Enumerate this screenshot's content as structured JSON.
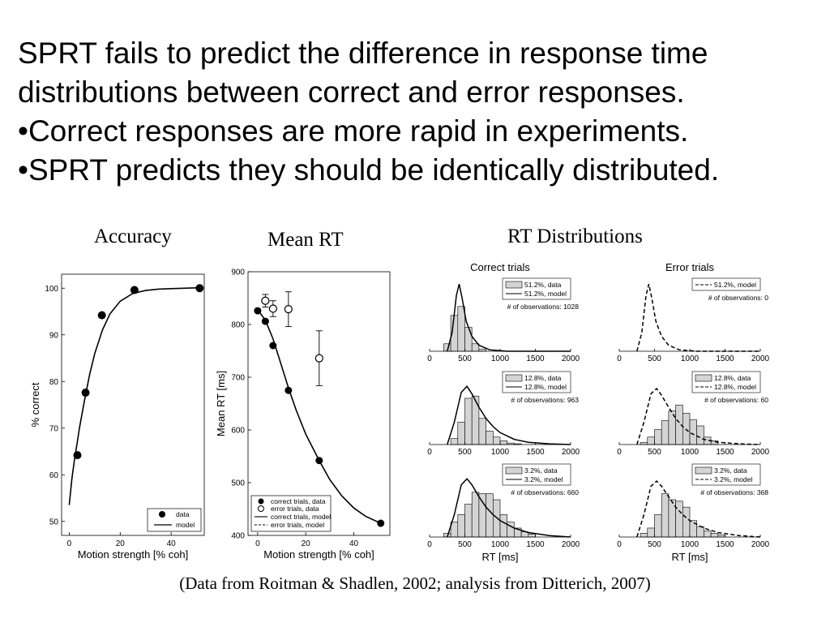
{
  "slide": {
    "lines": [
      "SPRT fails to predict the difference in response time",
      "distributions between correct and error responses.",
      "•Correct responses are more rapid in experiments.",
      "•SPRT predicts they should be identically distributed."
    ],
    "caption": "(Data from Roitman & Shadlen, 2002; analysis from Ditterich, 2007)"
  },
  "chart_data": [
    {
      "type": "scatter",
      "title": "Accuracy",
      "xlabel": "Motion strength [% coh]",
      "ylabel": "% correct",
      "xlim": [
        -3,
        53
      ],
      "ylim": [
        47,
        103
      ],
      "xticks": [
        0,
        20,
        40
      ],
      "yticks": [
        50,
        60,
        70,
        80,
        90,
        100
      ],
      "legend": [
        "data",
        "model"
      ],
      "legend_position": "bottom-right",
      "series": [
        {
          "name": "data",
          "x": [
            3.2,
            6.4,
            12.8,
            25.6,
            51.2
          ],
          "y": [
            64.2,
            77.6,
            94.2,
            99.6,
            100
          ]
        },
        {
          "name": "model",
          "x": [
            0,
            1,
            2,
            3,
            4,
            6,
            8,
            10,
            13,
            16,
            20,
            25,
            30,
            35,
            40,
            45,
            51.2
          ],
          "y": [
            53.5,
            59,
            63,
            66.5,
            70,
            76,
            81.5,
            86,
            91,
            94.5,
            97.2,
            98.9,
            99.5,
            99.8,
            99.9,
            100,
            100.1
          ]
        }
      ]
    },
    {
      "type": "scatter",
      "title": "Mean RT",
      "xlabel": "Motion strength [% coh]",
      "ylabel": "Mean RT [ms]",
      "xlim": [
        -4,
        55
      ],
      "ylim": [
        400,
        900
      ],
      "xticks": [
        0,
        20,
        40
      ],
      "yticks": [
        400,
        500,
        600,
        700,
        800,
        900
      ],
      "legend": [
        "correct trials, data",
        "error trials, data",
        "correct trials, model",
        "error trials, model"
      ],
      "legend_position": "bottom-left",
      "series": [
        {
          "name": "correct trials, data",
          "x": [
            0,
            3.2,
            6.4,
            12.8,
            25.6,
            51.2
          ],
          "y": [
            826,
            806,
            760,
            675,
            542,
            423
          ]
        },
        {
          "name": "error trials, data",
          "x": [
            3.2,
            6.4,
            12.8,
            25.6
          ],
          "y": [
            845,
            830,
            829,
            736
          ],
          "err": [
            12,
            15,
            33,
            52
          ]
        },
        {
          "name": "correct trials, model",
          "x": [
            0,
            3.2,
            6.4,
            9,
            12.8,
            16,
            20,
            25.6,
            30,
            35,
            40,
            45,
            51.2
          ],
          "y": [
            828,
            808,
            773,
            735,
            680,
            638,
            592,
            542,
            506,
            475,
            452,
            436,
            423
          ]
        }
      ]
    },
    {
      "type": "bar",
      "title": "RT Distributions",
      "columns": [
        "Correct trials",
        "Error trials"
      ],
      "xlabel": "RT [ms]",
      "xticks": [
        0,
        500,
        1000,
        1500,
        2000
      ],
      "bin_edges": [
        0,
        100,
        200,
        300,
        400,
        500,
        600,
        700,
        800,
        900,
        1000,
        1100,
        1200,
        1300,
        1400,
        1500,
        1600,
        1700,
        1800,
        1900,
        2000
      ],
      "panels": [
        {
          "legend": [
            "51.2%, data",
            "51.2%, model"
          ],
          "obs": "# of observations: 1028",
          "dashed": false,
          "values": [
            0,
            0,
            0.1,
            0.48,
            0.6,
            0.32,
            0.1,
            0.03,
            0,
            0,
            0,
            0,
            0,
            0,
            0,
            0,
            0,
            0,
            0,
            0
          ],
          "model": [
            [
              250,
              0
            ],
            [
              320,
              0.25
            ],
            [
              380,
              0.75
            ],
            [
              420,
              0.9
            ],
            [
              460,
              0.72
            ],
            [
              520,
              0.4
            ],
            [
              600,
              0.2
            ],
            [
              700,
              0.08
            ],
            [
              850,
              0.02
            ],
            [
              1100,
              0
            ],
            [
              2000,
              0
            ]
          ]
        },
        {
          "legend": [
            "51.2%, model"
          ],
          "obs": "# of observations: 0",
          "dashed": true,
          "values": [],
          "model": [
            [
              250,
              0
            ],
            [
              320,
              0.25
            ],
            [
              380,
              0.75
            ],
            [
              420,
              0.9
            ],
            [
              460,
              0.72
            ],
            [
              520,
              0.4
            ],
            [
              600,
              0.2
            ],
            [
              700,
              0.08
            ],
            [
              850,
              0.02
            ],
            [
              1100,
              0
            ],
            [
              2000,
              0
            ]
          ]
        },
        {
          "legend": [
            "12.8%, data",
            "12.8%, model"
          ],
          "obs": "# of observations: 963",
          "dashed": false,
          "values": [
            0,
            0,
            0,
            0.08,
            0.3,
            0.62,
            0.65,
            0.35,
            0.18,
            0.1,
            0.05,
            0.02,
            0.01,
            0,
            0,
            0,
            0,
            0,
            0,
            0
          ],
          "model": [
            [
              250,
              0
            ],
            [
              350,
              0.3
            ],
            [
              450,
              0.7
            ],
            [
              530,
              0.78
            ],
            [
              600,
              0.68
            ],
            [
              700,
              0.5
            ],
            [
              800,
              0.35
            ],
            [
              900,
              0.24
            ],
            [
              1000,
              0.16
            ],
            [
              1200,
              0.07
            ],
            [
              1400,
              0.03
            ],
            [
              1700,
              0.01
            ],
            [
              2000,
              0
            ]
          ]
        },
        {
          "legend": [
            "12.8%, data",
            "12.8%, model"
          ],
          "obs": "# of observations: 60",
          "dashed": true,
          "values": [
            0,
            0,
            0,
            0.03,
            0.1,
            0.2,
            0.32,
            0.45,
            0.53,
            0.42,
            0.33,
            0.25,
            0.1,
            0.05,
            0,
            0,
            0,
            0,
            0,
            0
          ],
          "model": [
            [
              250,
              0
            ],
            [
              350,
              0.3
            ],
            [
              450,
              0.68
            ],
            [
              530,
              0.75
            ],
            [
              600,
              0.66
            ],
            [
              700,
              0.5
            ],
            [
              800,
              0.35
            ],
            [
              900,
              0.24
            ],
            [
              1000,
              0.16
            ],
            [
              1200,
              0.07
            ],
            [
              1400,
              0.03
            ],
            [
              1700,
              0.01
            ],
            [
              2000,
              0
            ]
          ]
        },
        {
          "legend": [
            "3.2%, data",
            "3.2%, model"
          ],
          "obs": "# of observations: 660",
          "dashed": false,
          "values": [
            0,
            0,
            0.05,
            0.2,
            0.3,
            0.44,
            0.6,
            0.58,
            0.58,
            0.5,
            0.3,
            0.2,
            0.12,
            0.07,
            0.04,
            0,
            0,
            0,
            0,
            0
          ],
          "model": [
            [
              250,
              0
            ],
            [
              350,
              0.3
            ],
            [
              450,
              0.7
            ],
            [
              530,
              0.78
            ],
            [
              600,
              0.7
            ],
            [
              700,
              0.54
            ],
            [
              800,
              0.4
            ],
            [
              900,
              0.3
            ],
            [
              1000,
              0.22
            ],
            [
              1200,
              0.12
            ],
            [
              1400,
              0.06
            ],
            [
              1700,
              0.02
            ],
            [
              2000,
              0
            ]
          ]
        },
        {
          "legend": [
            "3.2%, data",
            "3.2%, model"
          ],
          "obs": "# of observations: 368",
          "dashed": true,
          "values": [
            0,
            0,
            0,
            0.05,
            0.12,
            0.3,
            0.58,
            0.5,
            0.48,
            0.4,
            0.22,
            0.14,
            0.08,
            0.05,
            0.03,
            0,
            0,
            0,
            0,
            0
          ],
          "model": [
            [
              250,
              0
            ],
            [
              350,
              0.3
            ],
            [
              450,
              0.68
            ],
            [
              530,
              0.75
            ],
            [
              600,
              0.68
            ],
            [
              700,
              0.54
            ],
            [
              800,
              0.4
            ],
            [
              900,
              0.3
            ],
            [
              1000,
              0.22
            ],
            [
              1200,
              0.12
            ],
            [
              1400,
              0.06
            ],
            [
              1700,
              0.02
            ],
            [
              2000,
              0
            ]
          ]
        }
      ]
    }
  ]
}
